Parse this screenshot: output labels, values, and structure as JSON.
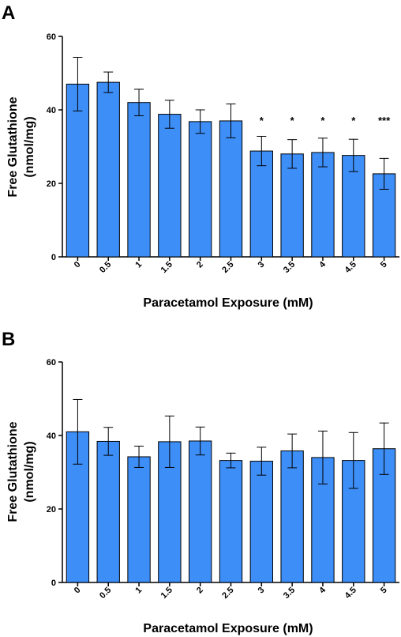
{
  "bar_color": "#3d8ef7",
  "chart_data": [
    {
      "panel": "A",
      "type": "bar",
      "categories": [
        "0",
        "0.5",
        "1",
        "1.5",
        "2",
        "2.5",
        "3",
        "3.5",
        "4",
        "4.5",
        "5"
      ],
      "values": [
        47,
        47.5,
        42,
        38.8,
        36.8,
        37,
        28.8,
        28,
        28.4,
        27.6,
        22.6
      ],
      "errors": [
        7.3,
        2.8,
        3.6,
        3.8,
        3.2,
        4.6,
        4,
        3.9,
        3.9,
        4.4,
        4.2
      ],
      "significance": [
        "",
        "",
        "",
        "",
        "",
        "",
        "*",
        "*",
        "*",
        "*",
        "***"
      ],
      "xlabel": "Paracetamol Exposure (mM)",
      "ylabel_line1": "Free Glutathione",
      "ylabel_line2": "(nmol/mg)",
      "ylim": [
        0,
        60
      ],
      "yticks": [
        "0",
        "20",
        "40",
        "60"
      ]
    },
    {
      "panel": "B",
      "type": "bar",
      "categories": [
        "0",
        "0.5",
        "1",
        "1.5",
        "2",
        "2.5",
        "3",
        "3.5",
        "4",
        "4.5",
        "5"
      ],
      "values": [
        41,
        38.4,
        34.2,
        38.3,
        38.5,
        33.2,
        33,
        35.8,
        34,
        33.2,
        36.4
      ],
      "errors": [
        8.8,
        3.8,
        2.9,
        7,
        3.8,
        2,
        3.8,
        4.6,
        7.2,
        7.6,
        7
      ],
      "significance": [
        "",
        "",
        "",
        "",
        "",
        "",
        "",
        "",
        "",
        "",
        ""
      ],
      "xlabel": "Paracetamol Exposure (mM)",
      "ylabel_line1": "Free Glutathione",
      "ylabel_line2": "(nmol/mg)",
      "ylim": [
        0,
        60
      ],
      "yticks": [
        "0",
        "20",
        "40",
        "60"
      ]
    }
  ]
}
